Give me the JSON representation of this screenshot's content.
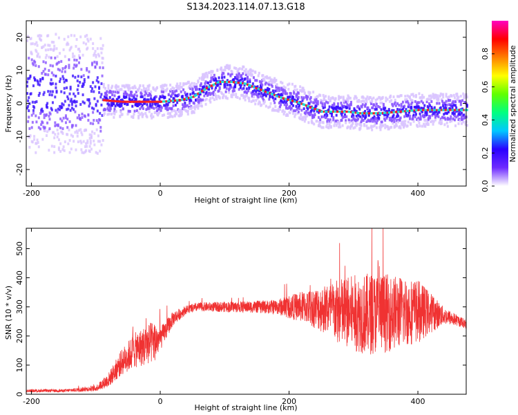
{
  "figure": {
    "title": "S134.2023.114.07.13.G18"
  },
  "chart_data": [
    {
      "type": "heatmap",
      "id": "spectrogram",
      "xlabel": "Height of straight line (km)",
      "ylabel": "Frequency (Hz)",
      "xlim": [
        -208,
        475
      ],
      "ylim": [
        -25,
        25
      ],
      "xticks": [
        -200,
        0,
        200,
        400
      ],
      "yticks": [
        -20,
        -10,
        0,
        10,
        20
      ],
      "colorbar": {
        "label": "Normalized spectral amplitude",
        "range": [
          0,
          1
        ],
        "ticks": [
          0.0,
          0.2,
          0.4,
          0.6,
          0.8
        ],
        "tick_labels": [
          "0.0",
          "0.2",
          "0.4",
          "0.6",
          "0.8"
        ],
        "colormap": [
          "#ffffff",
          "#6e2bff",
          "#2a00ff",
          "#00c8ff",
          "#00ff80",
          "#60ff00",
          "#ffff00",
          "#ff8000",
          "#ff0000",
          "#ff00c0"
        ]
      },
      "peak_trace": {
        "x": [
          -100,
          -90,
          -60,
          -30,
          0,
          30,
          50,
          70,
          90,
          110,
          130,
          150,
          170,
          190,
          210,
          230,
          250,
          270,
          290,
          310,
          340,
          370,
          400,
          430,
          475
        ],
        "y": [
          3,
          1,
          0.5,
          0.5,
          0.5,
          1,
          2,
          4.5,
          6.5,
          6.5,
          6,
          4.5,
          3,
          1.5,
          0.5,
          -1,
          -2.5,
          -2.5,
          -2.5,
          -3,
          -3,
          -2.5,
          -2,
          -2,
          -2
        ]
      }
    },
    {
      "type": "line",
      "id": "snr",
      "xlabel": "Height of straight line (km)",
      "ylabel": "SNR (10 * v/v)",
      "xlim": [
        -208,
        475
      ],
      "ylim": [
        0,
        570
      ],
      "xticks": [
        -200,
        0,
        200,
        400
      ],
      "yticks": [
        0,
        100,
        200,
        300,
        400,
        500
      ],
      "line_color": "#f03232",
      "envelope": {
        "x": [
          -208,
          -150,
          -100,
          -80,
          -60,
          -40,
          -20,
          -10,
          0,
          20,
          40,
          60,
          100,
          140,
          180,
          200,
          230,
          260,
          280,
          300,
          320,
          340,
          360,
          380,
          400,
          420,
          440,
          460,
          475
        ],
        "y": [
          12,
          12,
          20,
          50,
          110,
          150,
          170,
          180,
          190,
          260,
          290,
          300,
          300,
          300,
          300,
          300,
          300,
          290,
          280,
          280,
          275,
          280,
          280,
          285,
          285,
          280,
          270,
          255,
          240
        ],
        "amplitude": [
          5,
          5,
          10,
          25,
          45,
          60,
          70,
          75,
          40,
          25,
          15,
          15,
          18,
          20,
          25,
          40,
          60,
          90,
          120,
          130,
          140,
          140,
          130,
          120,
          110,
          70,
          30,
          20,
          15
        ]
      }
    }
  ]
}
